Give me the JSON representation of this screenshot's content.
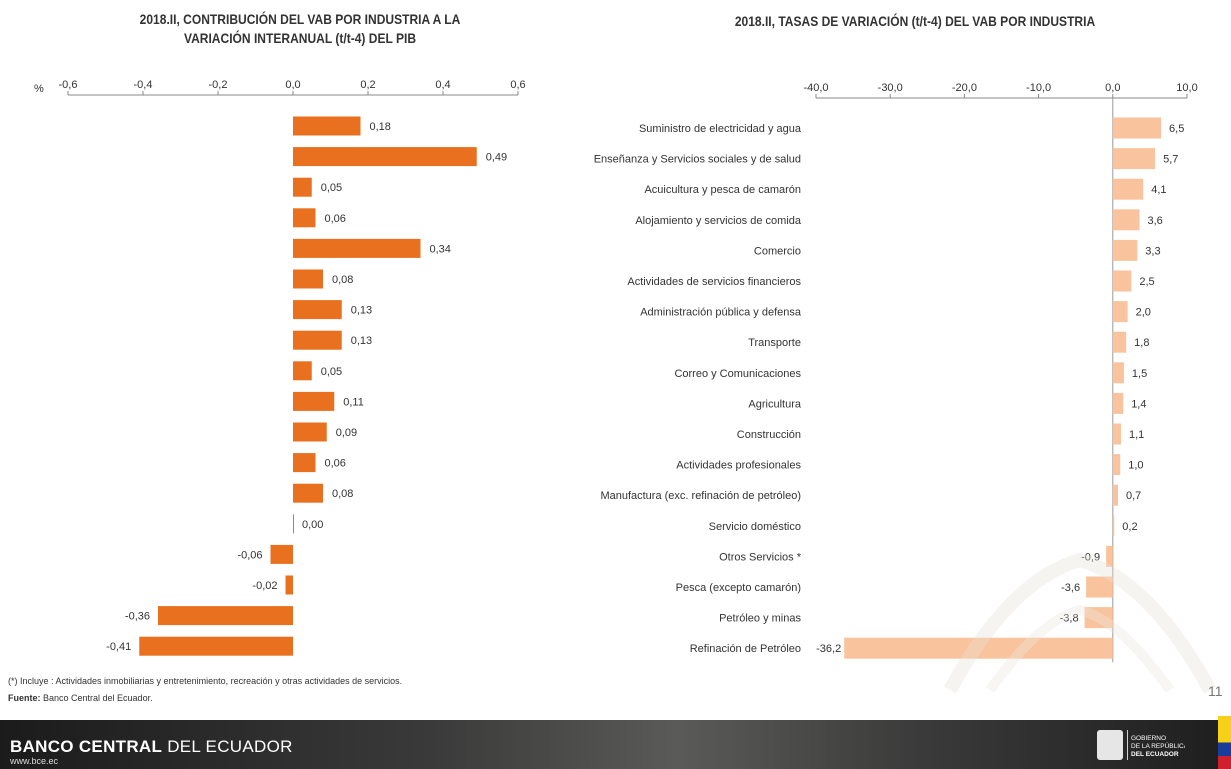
{
  "left_chart_title_line1": "2018.II, CONTRIBUCIÓN DEL VAB POR INDUSTRIA A LA",
  "left_chart_title_line2": "VARIACIÓN INTERANUAL (t/t-4) DEL PIB",
  "right_chart_title": "2018.II, TASAS DE VARIACIÓN (t/t-4) DEL VAB POR INDUSTRIA",
  "footnote": "(*) Incluye : Actividades inmobiliarias y entretenimiento, recreación y otras actividades de servicios.",
  "source_label": "Fuente:",
  "source_text": " Banco Central del Ecuador.",
  "bank_name_bold": "BANCO CENTRAL",
  "bank_name_rest": " DEL ECUADOR",
  "website": "www.bce.ec",
  "page_number": "11",
  "gov_logo_lines": [
    "GOBIERNO",
    "DE LA REPÚBLICA",
    "DEL ECUADOR"
  ],
  "colors": {
    "left_bar": "#e8701f",
    "right_bar": "#f9c49d"
  },
  "chart_data": [
    {
      "type": "bar",
      "orientation": "horizontal",
      "title": "2018.II, CONTRIBUCIÓN DEL VAB POR INDUSTRIA A LA VARIACIÓN INTERANUAL (t/t-4) DEL PIB",
      "unit_label": "%",
      "xlim": [
        -0.6,
        0.6
      ],
      "ticks": [
        "-0,6",
        "-0,4",
        "-0,2",
        "0,0",
        "0,2",
        "0,4",
        "0,6"
      ],
      "tick_values": [
        -0.6,
        -0.4,
        -0.2,
        0.0,
        0.2,
        0.4,
        0.6
      ],
      "values": [
        0.18,
        0.49,
        0.05,
        0.06,
        0.34,
        0.08,
        0.13,
        0.13,
        0.05,
        0.11,
        0.09,
        0.06,
        0.08,
        0.0,
        -0.06,
        -0.02,
        -0.36,
        -0.41
      ],
      "labels": [
        "0,18",
        "0,49",
        "0,05",
        "0,06",
        "0,34",
        "0,08",
        "0,13",
        "0,13",
        "0,05",
        "0,11",
        "0,09",
        "0,06",
        "0,08",
        "0,00",
        "-0,06",
        "-0,02",
        "-0,36",
        "-0,41"
      ]
    },
    {
      "type": "bar",
      "orientation": "horizontal",
      "title": "2018.II, TASAS DE VARIACIÓN (t/t-4) DEL VAB POR INDUSTRIA",
      "xlim": [
        -40,
        10
      ],
      "ticks": [
        "-40,0",
        "-30,0",
        "-20,0",
        "-10,0",
        "0,0",
        "10,0"
      ],
      "tick_values": [
        -40,
        -30,
        -20,
        -10,
        0,
        10
      ],
      "categories": [
        "Suministro de electricidad y agua",
        "Enseñanza  y Servicios sociales y de salud",
        "Acuicultura y pesca de camarón",
        "Alojamiento y servicios de comida",
        "Comercio",
        "Actividades de servicios financieros",
        "Administración pública y defensa",
        "Transporte",
        "Correo y Comunicaciones",
        "Agricultura",
        "Construcción",
        "Actividades profesionales",
        "Manufactura (exc. refinación de petróleo)",
        "Servicio doméstico",
        "Otros Servicios *",
        "Pesca (excepto camarón)",
        "Petróleo y minas",
        "Refinación de Petróleo"
      ],
      "values": [
        6.5,
        5.7,
        4.1,
        3.6,
        3.3,
        2.5,
        2.0,
        1.8,
        1.5,
        1.4,
        1.1,
        1.0,
        0.7,
        0.2,
        -0.9,
        -3.6,
        -3.8,
        -36.2
      ],
      "labels": [
        "6,5",
        "5,7",
        "4,1",
        "3,6",
        "3,3",
        "2,5",
        "2,0",
        "1,8",
        "1,5",
        "1,4",
        "1,1",
        "1,0",
        "0,7",
        "0,2",
        "-0,9",
        "-3,6",
        "-3,8",
        "-36,2"
      ]
    }
  ]
}
